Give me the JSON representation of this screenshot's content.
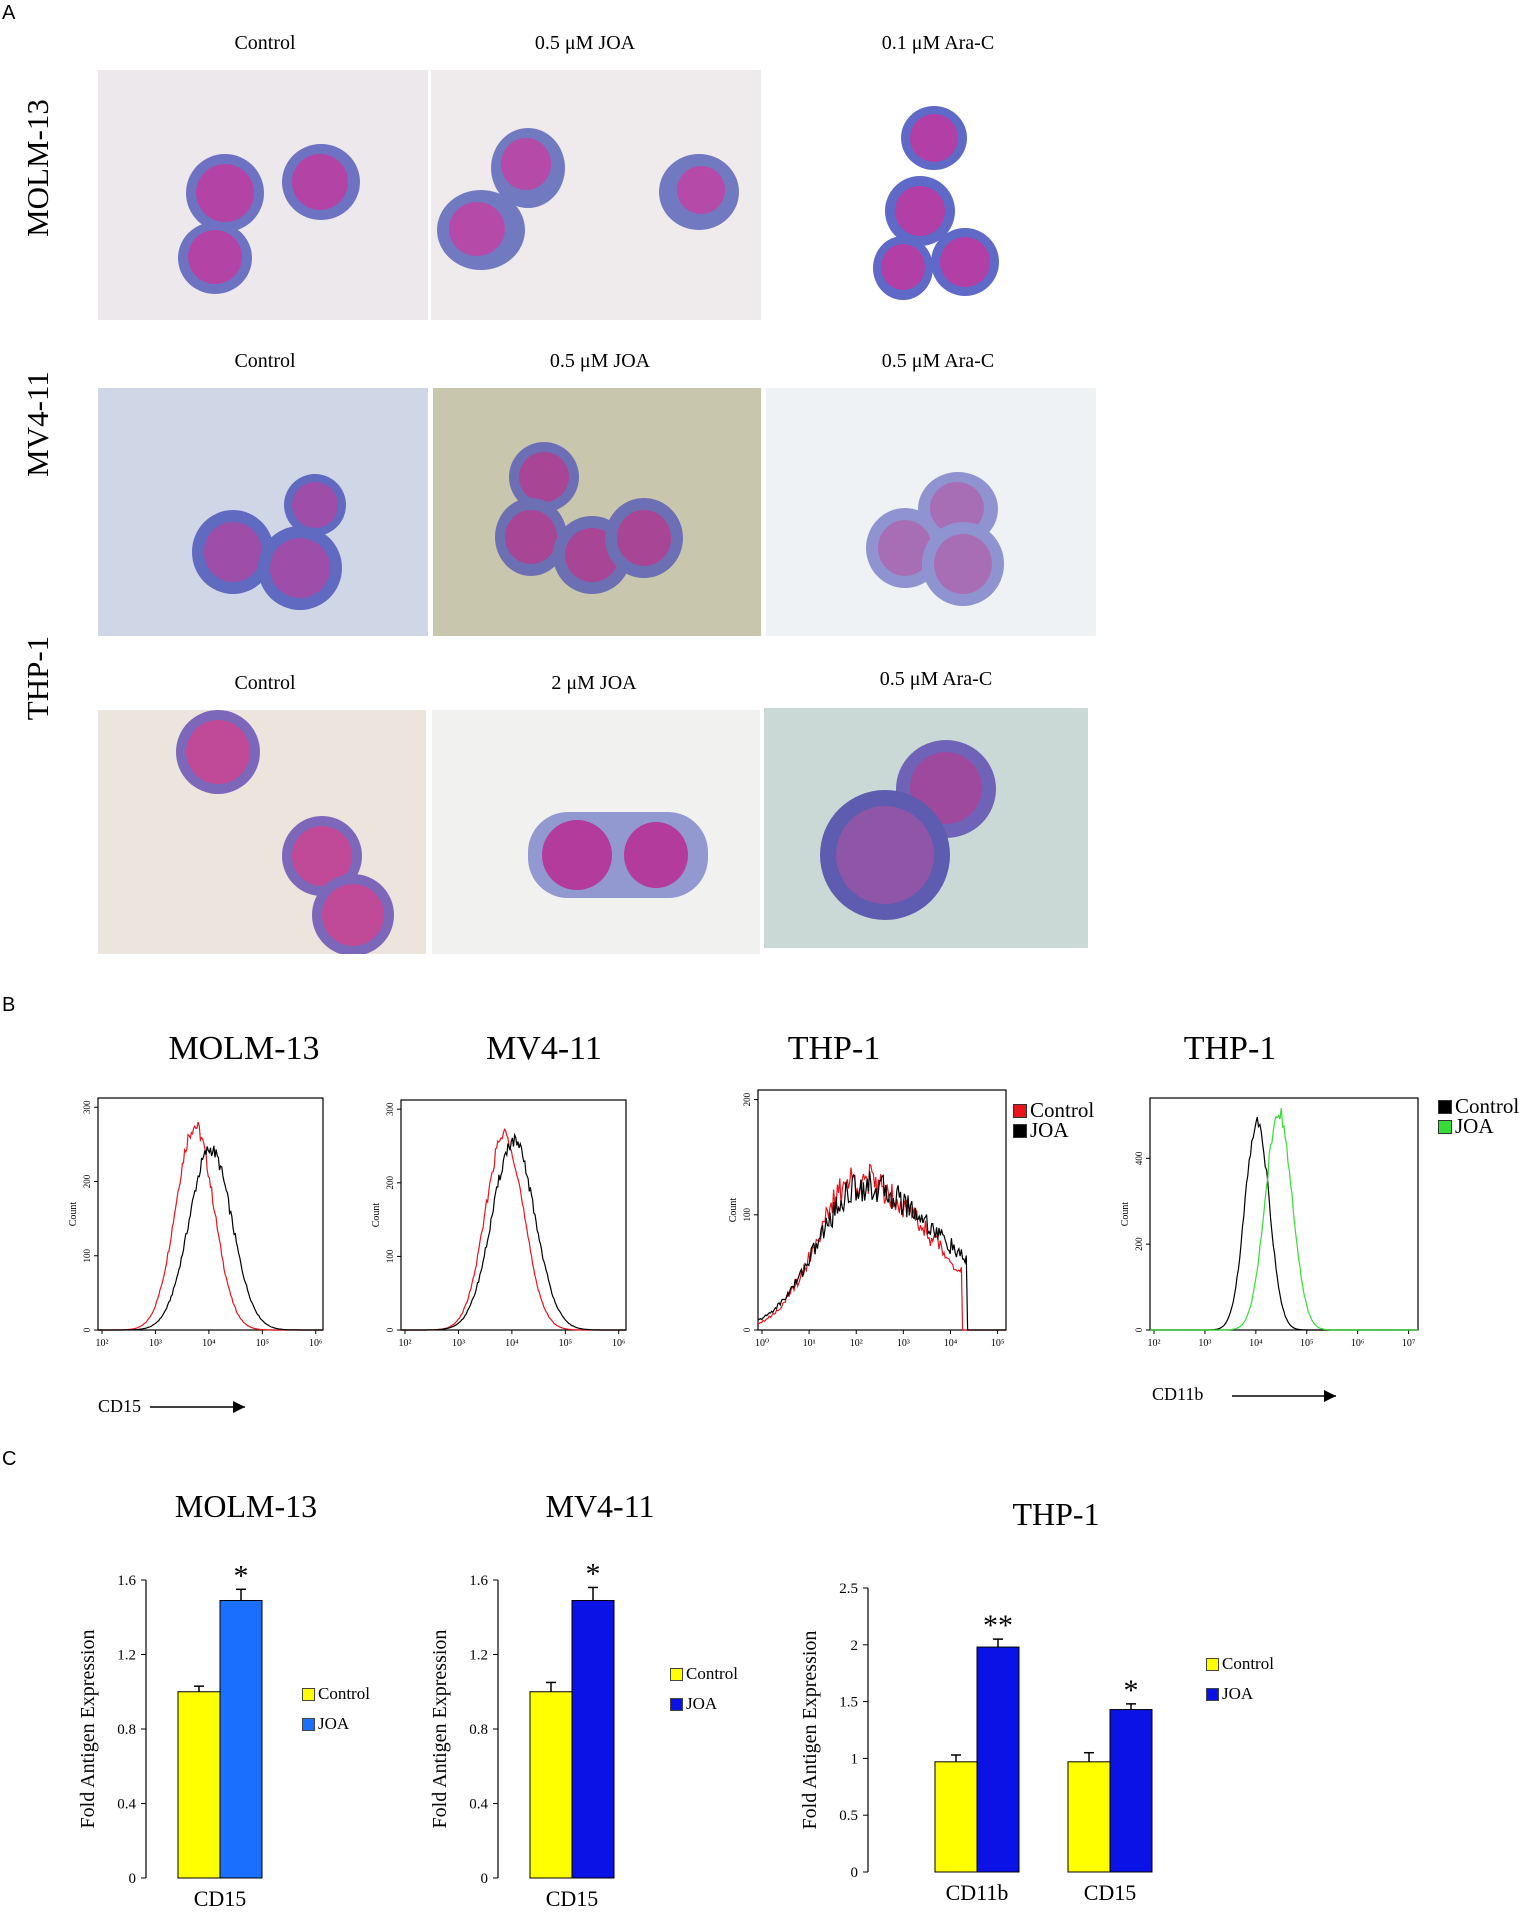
{
  "panelA": {
    "letter": "A",
    "rows": [
      {
        "label": "MOLM-13",
        "cols": [
          "Control",
          "0.5 μM JOA",
          "0.1 μM Ara-C"
        ]
      },
      {
        "label": "MV4-11",
        "cols": [
          "Control",
          "0.5 μM JOA",
          "0.5 μM Ara-C"
        ]
      },
      {
        "label": "THP-1",
        "cols": [
          "Control",
          "2 μM JOA",
          "0.5 μM Ara-C"
        ]
      }
    ]
  },
  "panelB": {
    "letter": "B",
    "plots": [
      {
        "title": "MOLM-13",
        "yticks": [
          "0",
          "100",
          "200",
          "300"
        ],
        "xticks": [
          "10²",
          "10³",
          "10⁴",
          "10⁵",
          "10⁶"
        ],
        "ylabel": "Count"
      },
      {
        "title": "MV4-11",
        "yticks": [
          "0",
          "100",
          "200",
          "300"
        ],
        "xticks": [
          "10²",
          "10³",
          "10⁴",
          "10⁵",
          "10⁶"
        ],
        "ylabel": "Count"
      },
      {
        "title": "THP-1",
        "yticks": [
          "0",
          "100",
          "200"
        ],
        "xticks": [
          "10⁰",
          "10¹",
          "10²",
          "10³",
          "10⁴",
          "10⁵"
        ],
        "ylabel": "Count"
      },
      {
        "title": "THP-1",
        "yticks": [
          "0",
          "200",
          "400"
        ],
        "xticks": [
          "10²",
          "10³",
          "10⁴",
          "10⁵",
          "10⁶",
          "10⁷"
        ],
        "ylabel": "Count"
      }
    ],
    "arrow_label_1": "CD15",
    "arrow_label_2": "CD11b",
    "legend1": [
      {
        "label": "Control",
        "color": "#e8141b"
      },
      {
        "label": "JOA",
        "color": "#000000"
      }
    ],
    "legend2": [
      {
        "label": "Control",
        "color": "#000000"
      },
      {
        "label": "JOA",
        "color": "#33dd33"
      }
    ]
  },
  "panelC": {
    "letter": "C",
    "ylabel": "Fold Antigen Expression",
    "charts": [
      {
        "title": "MOLM-13",
        "yticks": [
          "0",
          "0.4",
          "0.8",
          "1.2",
          "1.6"
        ],
        "ymax": 1.6,
        "groups": [
          "CD15"
        ],
        "control": [
          1.0
        ],
        "joa": [
          1.49
        ],
        "control_err": [
          0.03
        ],
        "joa_err": [
          0.06
        ],
        "sig": [
          "*"
        ],
        "joa_color": "#1a6fff",
        "legend": [
          "Control",
          "JOA"
        ]
      },
      {
        "title": "MV4-11",
        "yticks": [
          "0",
          "0.4",
          "0.8",
          "1.2",
          "1.6"
        ],
        "ymax": 1.6,
        "groups": [
          "CD15"
        ],
        "control": [
          1.0
        ],
        "joa": [
          1.49
        ],
        "control_err": [
          0.05
        ],
        "joa_err": [
          0.07
        ],
        "sig": [
          "*"
        ],
        "joa_color": "#0a12e6",
        "legend": [
          "Control",
          "JOA"
        ]
      },
      {
        "title": "THP-1",
        "yticks": [
          "0",
          "0.5",
          "1",
          "1.5",
          "2",
          "2.5"
        ],
        "ymax": 2.5,
        "groups": [
          "CD11b",
          "CD15"
        ],
        "control": [
          0.97,
          0.97
        ],
        "joa": [
          1.98,
          1.43
        ],
        "control_err": [
          0.06,
          0.08
        ],
        "joa_err": [
          0.07,
          0.05
        ],
        "sig": [
          "**",
          "*"
        ],
        "joa_color": "#0a12e6",
        "legend": [
          "Control",
          "JOA"
        ]
      }
    ],
    "control_color": "#ffff00"
  }
}
